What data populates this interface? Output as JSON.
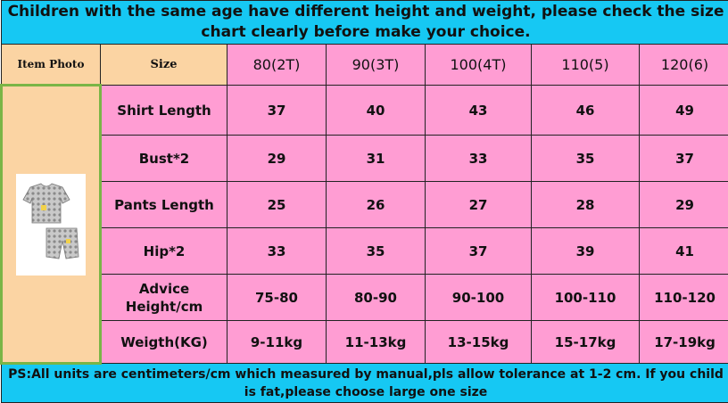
{
  "banner": "Children with the same age have different height and weight, please check the size chart clearly before make your choice.",
  "header": {
    "item_photo": "Item Photo",
    "size": "Size",
    "columns": [
      "80(2T)",
      "90(3T)",
      "100(4T)",
      "110(5)",
      "120(6)"
    ]
  },
  "rows": [
    {
      "label": "Shirt Length",
      "values": [
        "37",
        "40",
        "43",
        "46",
        "49"
      ]
    },
    {
      "label": "Bust*2",
      "values": [
        "29",
        "31",
        "33",
        "35",
        "37"
      ]
    },
    {
      "label": "Pants Length",
      "values": [
        "25",
        "26",
        "27",
        "28",
        "29"
      ]
    },
    {
      "label": "Hip*2",
      "values": [
        "33",
        "35",
        "37",
        "39",
        "41"
      ]
    },
    {
      "label": "Advice Height/cm",
      "values": [
        "75-80",
        "80-90",
        "90-100",
        "100-110",
        "110-120"
      ]
    },
    {
      "label": "Weigth(KG)",
      "values": [
        "9-11kg",
        "11-13kg",
        "13-15kg",
        "15-17kg",
        "17-19kg"
      ]
    }
  ],
  "footer": "PS:All units are centimeters/cm which measured by manual,pls allow tolerance at 1-2 cm. If you child is fat,please choose large one size",
  "colors": {
    "banner_bg": "#16c8f3",
    "header_bg": "#fbd4a3",
    "cell_bg": "#ff9dd3",
    "photo_border": "#7ab546"
  },
  "product_image": "kids-tshirt-shorts-set"
}
